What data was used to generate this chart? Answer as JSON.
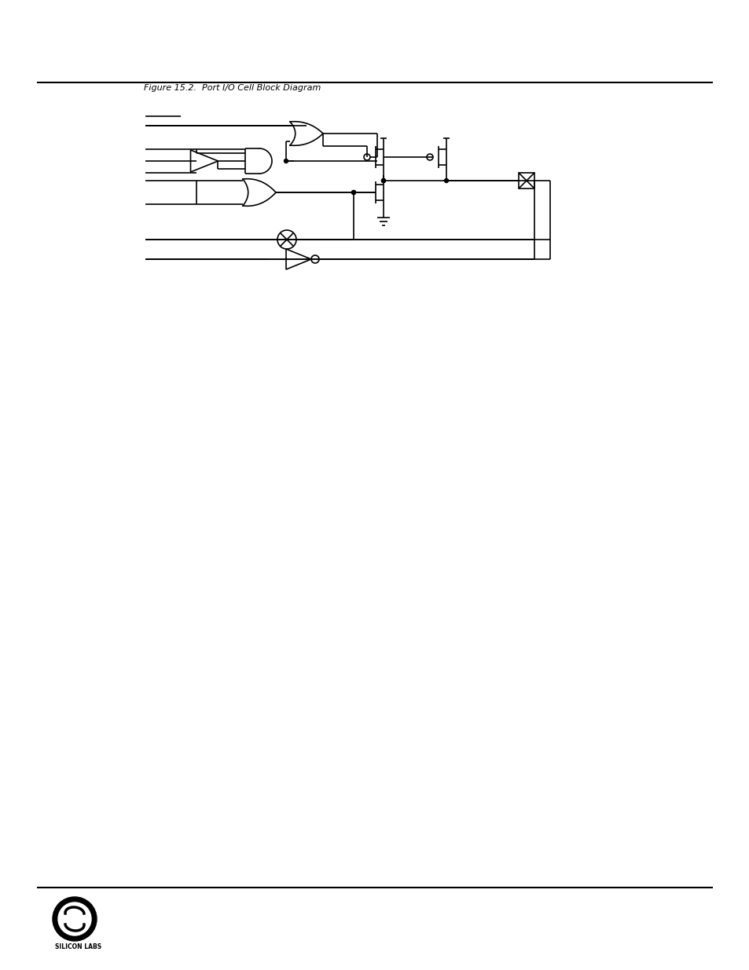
{
  "bg_color": "#ffffff",
  "line_color": "#000000",
  "line_width": 1.2,
  "fig_width": 9.54,
  "fig_height": 12.35
}
